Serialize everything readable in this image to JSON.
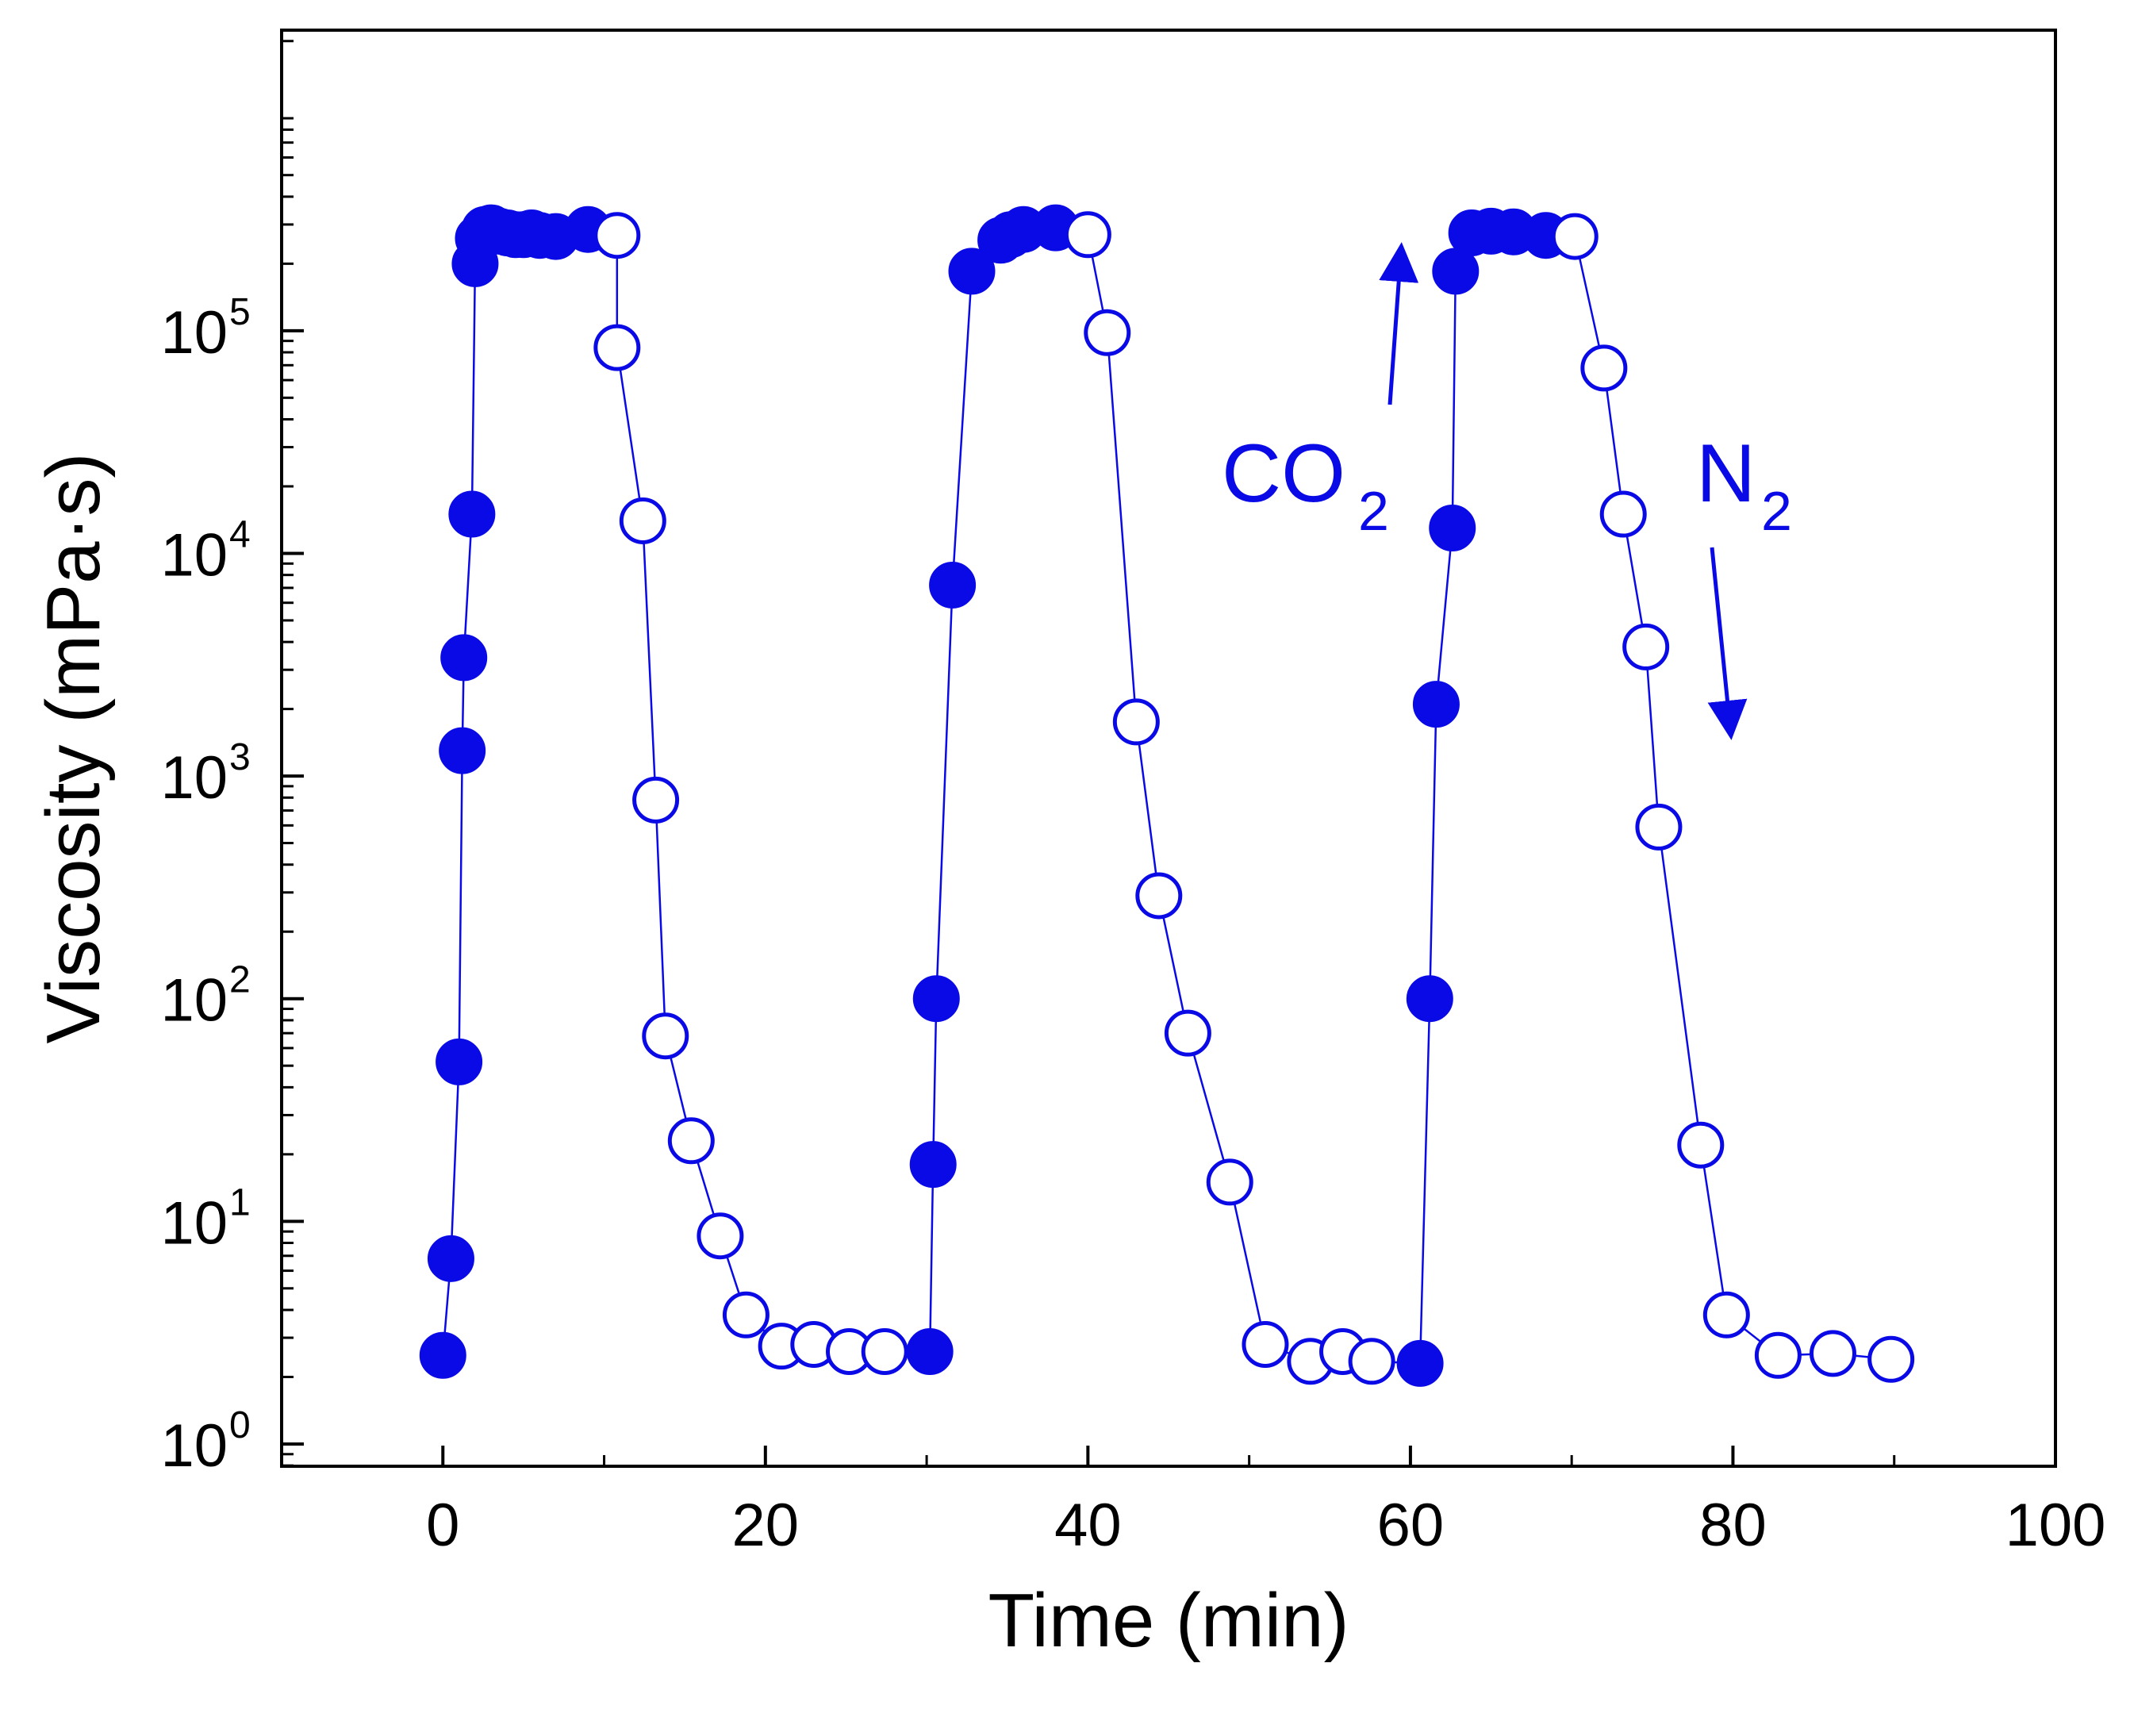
{
  "chart_data": {
    "type": "scatter",
    "title": "",
    "xlabel": "Time (min)",
    "ylabel": "Viscosity (mPa·s)",
    "xlim": [
      -10,
      100
    ],
    "ylim_log10": [
      -0.1,
      6.35
    ],
    "yscale": "log",
    "x_ticks": [
      0,
      20,
      40,
      60,
      80,
      100
    ],
    "x_tick_labels": [
      "0",
      "20",
      "40",
      "60",
      "80",
      "100"
    ],
    "y_ticks_exp": [
      0,
      1,
      2,
      3,
      4,
      5
    ],
    "y_tick_base": "10",
    "y_tick_exponents": [
      "0",
      "1",
      "2",
      "3",
      "4",
      "5"
    ],
    "grid": false,
    "colors": {
      "series": "#0a0ae6",
      "line": "#0a0ae6",
      "axis": "#000000"
    },
    "series": [
      {
        "name": "CO2 (filled)",
        "marker": "filled-circle",
        "points": [
          [
            0,
            2.5
          ],
          [
            0.5,
            6.8
          ],
          [
            1.0,
            52
          ],
          [
            1.2,
            1300
          ],
          [
            1.3,
            3400
          ],
          [
            1.8,
            15000
          ],
          [
            2.0,
            200000
          ],
          [
            2.2,
            260000
          ],
          [
            2.6,
            285000
          ],
          [
            3.0,
            290000
          ],
          [
            3.5,
            280000
          ],
          [
            4.0,
            275000
          ],
          [
            4.5,
            270000
          ],
          [
            5.0,
            270000
          ],
          [
            5.5,
            275000
          ],
          [
            6.0,
            268000
          ],
          [
            7.0,
            265000
          ],
          [
            9.0,
            285000
          ],
          [
            30.2,
            2.6
          ],
          [
            30.4,
            18
          ],
          [
            30.6,
            100
          ],
          [
            31.6,
            7200
          ],
          [
            32.8,
            185000
          ],
          [
            34.6,
            255000
          ],
          [
            35.2,
            270000
          ],
          [
            36.0,
            285000
          ],
          [
            38.0,
            290000
          ],
          [
            60.6,
            2.3
          ],
          [
            61.2,
            100
          ],
          [
            61.6,
            2100
          ],
          [
            62.6,
            13000
          ],
          [
            62.8,
            185000
          ],
          [
            63.8,
            275000
          ],
          [
            65.0,
            280000
          ],
          [
            66.4,
            278000
          ],
          [
            68.4,
            268000
          ]
        ]
      },
      {
        "name": "N2 (open)",
        "marker": "open-circle",
        "points": [
          [
            10.8,
            268000
          ],
          [
            10.8,
            84000
          ],
          [
            12.4,
            14000
          ],
          [
            13.2,
            780
          ],
          [
            13.8,
            68
          ],
          [
            15.4,
            23
          ],
          [
            17.2,
            8.6
          ],
          [
            18.8,
            3.8
          ],
          [
            21.0,
            2.75
          ],
          [
            23.0,
            2.8
          ],
          [
            25.2,
            2.6
          ],
          [
            27.4,
            2.6
          ],
          [
            40.0,
            270000
          ],
          [
            41.2,
            98000
          ],
          [
            43.0,
            1750
          ],
          [
            44.4,
            290
          ],
          [
            46.2,
            70
          ],
          [
            48.8,
            15
          ],
          [
            51.0,
            2.8
          ],
          [
            53.8,
            2.35
          ],
          [
            55.8,
            2.6
          ],
          [
            57.6,
            2.35
          ],
          [
            70.2,
            265000
          ],
          [
            72.0,
            68000
          ],
          [
            73.2,
            15000
          ],
          [
            74.6,
            3800
          ],
          [
            75.4,
            590
          ],
          [
            78.0,
            22
          ],
          [
            79.6,
            3.8
          ],
          [
            82.8,
            2.5
          ],
          [
            86.2,
            2.55
          ],
          [
            89.8,
            2.4
          ]
        ]
      }
    ],
    "annotations": {
      "co2_label": "CO",
      "co2_sub": "2",
      "n2_label": "N",
      "n2_sub": "2"
    }
  }
}
